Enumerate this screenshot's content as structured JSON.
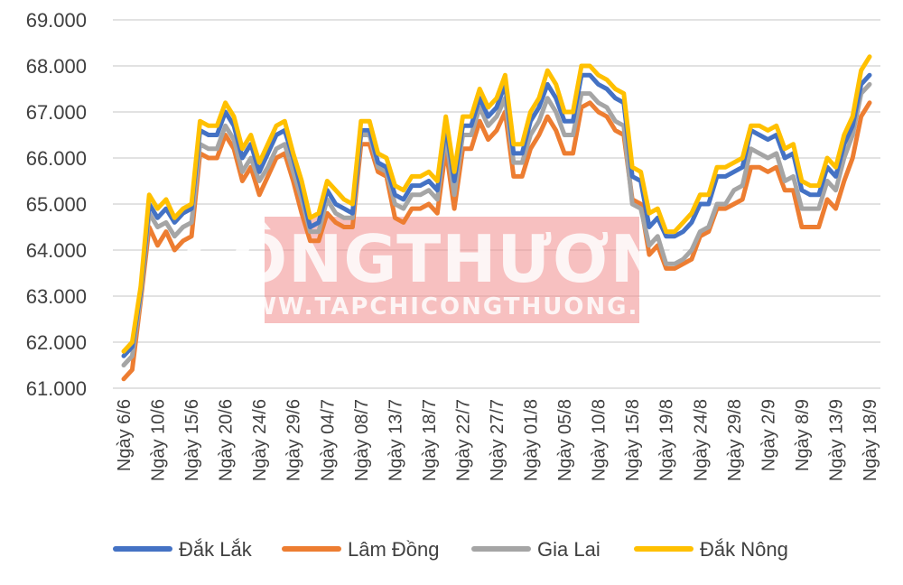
{
  "watermark": {
    "main": "CÔNGTHƯƠNG",
    "sub": "WWW.TAPCHICONGTHUONG.VN",
    "bg_color": "#f08c8c"
  },
  "chart_data": {
    "type": "line",
    "title": "",
    "xlabel": "",
    "ylabel": "",
    "ylim": [
      61000,
      69000
    ],
    "yticks": [
      61000,
      62000,
      63000,
      64000,
      65000,
      66000,
      67000,
      68000,
      69000
    ],
    "ytick_labels": [
      "61.000",
      "62.000",
      "63.000",
      "64.000",
      "65.000",
      "66.000",
      "67.000",
      "68.000",
      "69.000"
    ],
    "grid": true,
    "legend_position": "bottom",
    "x_tick_labels": [
      "Ngày 6/6",
      "Ngày 10/6",
      "Ngày 15/6",
      "Ngày 20/6",
      "Ngày 24/6",
      "Ngày 29/6",
      "Ngày 04/7",
      "Ngày 08/7",
      "Ngày 13/7",
      "Ngày 18/7",
      "Ngày 22/7",
      "Ngày 27/7",
      "Ngày 01/8",
      "Ngày 05/8",
      "Ngày 10/8",
      "Ngày 15/8",
      "Ngày 19/8",
      "Ngày 24/8",
      "Ngày 29/8",
      "Ngày 2/9",
      "Ngày 8/9",
      "Ngày 13/9",
      "Ngày 18/9"
    ],
    "series": [
      {
        "name": "Đắk Lắk",
        "color": "#4472c4",
        "values": [
          61700,
          61900,
          63100,
          65000,
          64700,
          64900,
          64600,
          64800,
          64900,
          66600,
          66500,
          66500,
          67000,
          66700,
          66000,
          66300,
          65700,
          66100,
          66500,
          66600,
          66000,
          65300,
          64500,
          64600,
          65300,
          65000,
          64900,
          64800,
          66600,
          66600,
          65900,
          65800,
          65200,
          65100,
          65400,
          65400,
          65500,
          65300,
          66700,
          65500,
          66700,
          66700,
          67300,
          66900,
          67100,
          67600,
          66100,
          66100,
          66800,
          67100,
          67600,
          67300,
          66800,
          66800,
          67800,
          67800,
          67600,
          67500,
          67300,
          67200,
          65600,
          65500,
          64500,
          64700,
          64300,
          64300,
          64400,
          64600,
          65000,
          65000,
          65600,
          65600,
          65700,
          65800,
          66600,
          66500,
          66400,
          66500,
          66000,
          66100,
          65300,
          65200,
          65200,
          65800,
          65600,
          66300,
          66700,
          67600,
          67800
        ]
      },
      {
        "name": "Lâm Đồng",
        "color": "#ed7d31",
        "values": [
          61200,
          61400,
          62900,
          64500,
          64100,
          64400,
          64000,
          64200,
          64300,
          66100,
          66000,
          66000,
          66500,
          66200,
          65500,
          65800,
          65200,
          65600,
          66000,
          66100,
          65500,
          64800,
          64200,
          64200,
          64800,
          64600,
          64500,
          64500,
          66300,
          66300,
          65700,
          65600,
          64700,
          64600,
          64900,
          64900,
          65000,
          64800,
          66200,
          64900,
          66200,
          66200,
          66800,
          66400,
          66600,
          67000,
          65600,
          65600,
          66200,
          66500,
          66900,
          66600,
          66100,
          66100,
          67100,
          67200,
          67000,
          66900,
          66600,
          66500,
          65100,
          65000,
          63900,
          64100,
          63600,
          63600,
          63700,
          63800,
          64300,
          64400,
          64900,
          64900,
          65000,
          65100,
          65800,
          65800,
          65700,
          65800,
          65300,
          65300,
          64500,
          64500,
          64500,
          65100,
          64900,
          65500,
          66000,
          66900,
          67200
        ]
      },
      {
        "name": "Gia Lai",
        "color": "#a5a5a5",
        "values": [
          61500,
          61700,
          63000,
          64800,
          64500,
          64600,
          64300,
          64500,
          64600,
          66300,
          66200,
          66200,
          66700,
          66400,
          65700,
          66000,
          65500,
          65800,
          66200,
          66300,
          65700,
          65100,
          64400,
          64400,
          65100,
          64800,
          64700,
          64700,
          66500,
          66500,
          65800,
          65700,
          65000,
          64900,
          65200,
          65200,
          65300,
          65100,
          66500,
          65200,
          66500,
          66500,
          67100,
          66700,
          66900,
          67300,
          65900,
          65900,
          66500,
          66800,
          67300,
          67000,
          66500,
          66500,
          67400,
          67400,
          67200,
          67100,
          66800,
          66700,
          65000,
          64900,
          64100,
          64300,
          63700,
          63700,
          63800,
          64000,
          64400,
          64500,
          65000,
          65000,
          65300,
          65400,
          66200,
          66100,
          66000,
          66100,
          65500,
          65600,
          64900,
          64900,
          64900,
          65500,
          65300,
          66000,
          66500,
          67400,
          67600
        ]
      },
      {
        "name": "Đắk Nông",
        "color": "#ffc000",
        "values": [
          61800,
          62000,
          63200,
          65200,
          64900,
          65100,
          64700,
          64900,
          65000,
          66800,
          66700,
          66700,
          67200,
          66900,
          66200,
          66500,
          65900,
          66300,
          66700,
          66800,
          66100,
          65500,
          64700,
          64800,
          65500,
          65300,
          65100,
          65000,
          66800,
          66800,
          66100,
          66000,
          65400,
          65300,
          65600,
          65600,
          65700,
          65500,
          66900,
          65700,
          66900,
          66900,
          67500,
          67100,
          67300,
          67800,
          66300,
          66300,
          67000,
          67300,
          67900,
          67600,
          67000,
          67000,
          68000,
          68000,
          67800,
          67700,
          67500,
          67400,
          65800,
          65700,
          64800,
          64900,
          64400,
          64400,
          64600,
          64800,
          65200,
          65200,
          65800,
          65800,
          65900,
          66000,
          66700,
          66700,
          66600,
          66700,
          66200,
          66300,
          65500,
          65400,
          65400,
          66000,
          65800,
          66500,
          66900,
          67900,
          68200
        ]
      }
    ]
  }
}
